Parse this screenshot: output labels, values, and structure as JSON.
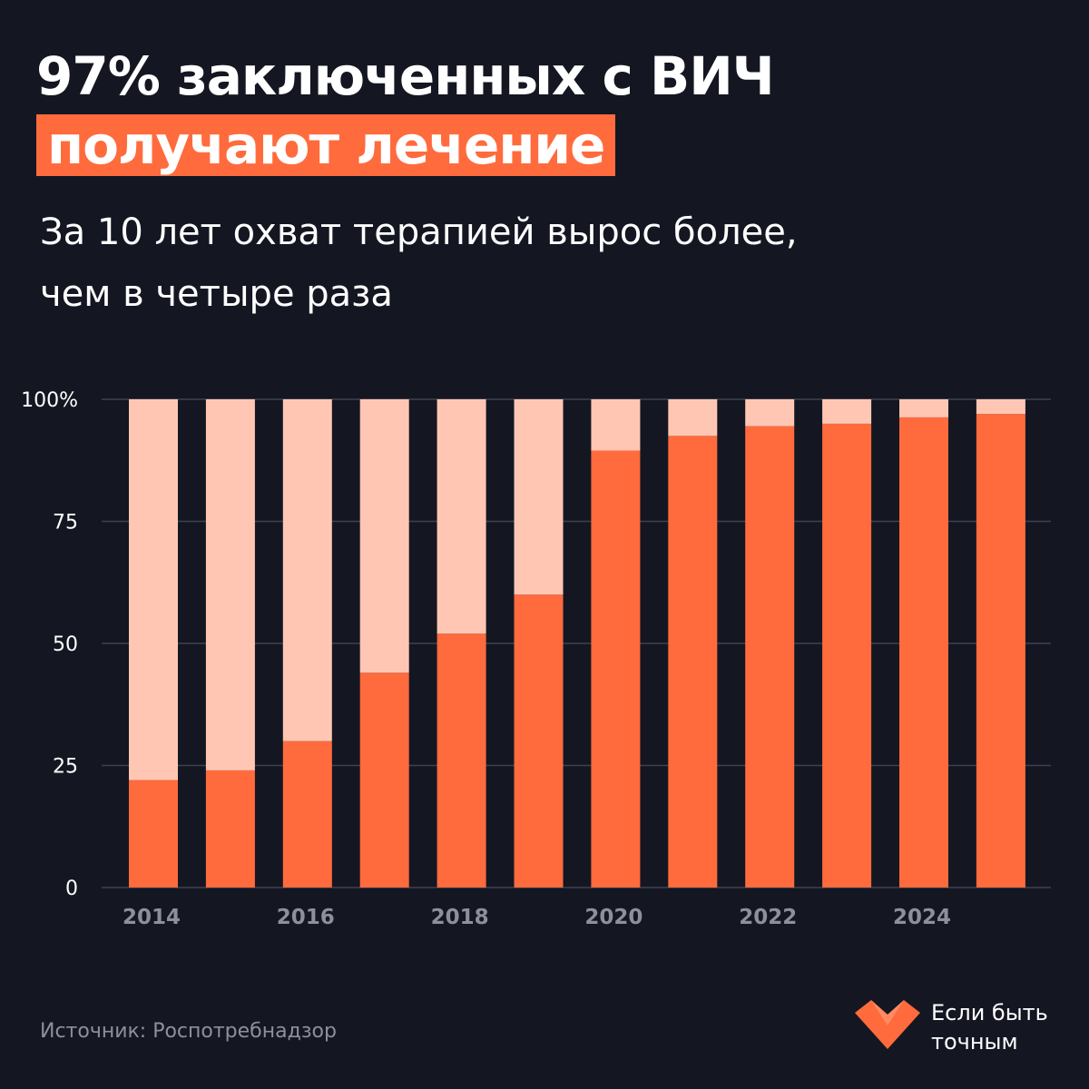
{
  "header": {
    "title_main": "97% заключенных с ВИЧ",
    "title_highlight": "получают лечение",
    "subtitle_line1": "За 10 лет охват терапией вырос более,",
    "subtitle_line2": "чем в четыре раза"
  },
  "footer": {
    "source": "Источник: Роспотребнадзор",
    "brand_line1": "Если быть",
    "brand_line2": "точным",
    "logo_icon": "heart-chevron-icon"
  },
  "colors": {
    "background": "#141722",
    "treated": "#ff6b3d",
    "remainder": "#ffc7b3",
    "grid": "#3e4250",
    "tick_label": "#ffffff",
    "x_label": "#8d909b"
  },
  "chart_data": {
    "type": "bar",
    "stacked": true,
    "categories": [
      "2014",
      "2015",
      "2016",
      "2017",
      "2018",
      "2019",
      "2020",
      "2021",
      "2022",
      "2023",
      "2024",
      "2025"
    ],
    "series": [
      {
        "values": [
          22,
          24,
          30,
          44,
          52,
          60,
          89.5,
          92.5,
          94.5,
          95,
          96.3,
          97
        ]
      },
      {
        "values": [
          78,
          76,
          70,
          56,
          48,
          40,
          10.5,
          7.5,
          5.5,
          5,
          3.7,
          3
        ]
      }
    ],
    "x_tick_labels": [
      "2014",
      "",
      "2016",
      "",
      "2018",
      "",
      "2020",
      "",
      "2022",
      "",
      "2024",
      ""
    ],
    "y_tick_labels": [
      "0",
      "25",
      "50",
      "75",
      "100%"
    ],
    "y_ticks": [
      0,
      25,
      50,
      75,
      100
    ],
    "ylim": [
      0,
      100
    ],
    "grid": true
  }
}
